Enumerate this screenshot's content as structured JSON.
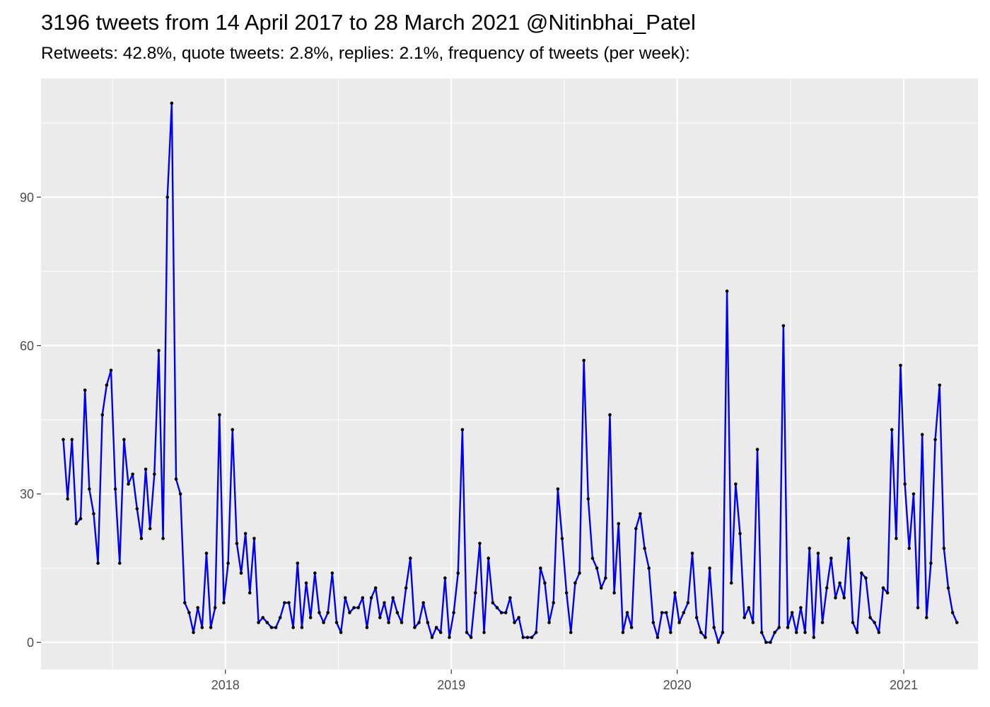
{
  "chart_data": {
    "type": "line",
    "title": "3196 tweets from 14 April 2017 to 28 March 2021 @Nitinbhai_Patel",
    "subtitle": "Retweets: 42.8%, quote tweets: 2.8%, replies: 2.1%, frequency of tweets (per week):",
    "xlabel": "",
    "ylabel": "",
    "x_start": "2017-04-14",
    "x_end": "2021-03-28",
    "xlim": [
      "2017-03-09",
      "2021-05-01"
    ],
    "ylim": [
      -5.5,
      114
    ],
    "y_ticks": [
      0,
      30,
      60,
      90
    ],
    "x_ticks": [
      {
        "label": "2018",
        "date": "2018-01-01"
      },
      {
        "label": "2019",
        "date": "2019-01-01"
      },
      {
        "label": "2020",
        "date": "2020-01-01"
      },
      {
        "label": "2021",
        "date": "2021-01-01"
      }
    ],
    "grid": true,
    "line_color": "#0000ee",
    "point_color": "#000000",
    "panel_background": "#ebebeb",
    "series": [
      {
        "values": [
          41,
          29,
          41,
          24,
          25,
          51,
          31,
          26,
          16,
          46,
          52,
          55,
          31,
          16,
          41,
          32,
          34,
          27,
          21,
          35,
          23,
          34,
          59,
          21,
          90,
          109,
          33,
          30,
          8,
          6,
          2,
          7,
          3,
          18,
          3,
          7,
          46,
          8,
          16,
          43,
          20,
          14,
          22,
          10,
          21,
          4,
          5,
          4,
          3,
          3,
          5,
          8,
          8,
          3,
          16,
          3,
          12,
          5,
          14,
          6,
          4,
          6,
          14,
          4,
          2,
          9,
          6,
          7,
          7,
          9,
          3,
          9,
          11,
          5,
          8,
          4,
          9,
          6,
          4,
          11,
          17,
          3,
          4,
          8,
          4,
          1,
          3,
          2,
          13,
          1,
          6,
          14,
          43,
          2,
          1,
          10,
          20,
          2,
          17,
          8,
          7,
          6,
          6,
          9,
          4,
          5,
          1,
          1,
          1,
          2,
          15,
          12,
          4,
          8,
          31,
          21,
          10,
          2,
          12,
          14,
          57,
          29,
          17,
          15,
          11,
          13,
          46,
          10,
          24,
          2,
          6,
          3,
          23,
          26,
          19,
          15,
          4,
          1,
          6,
          6,
          2,
          10,
          4,
          6,
          8,
          18,
          5,
          2,
          1,
          15,
          3,
          0,
          2,
          71,
          12,
          32,
          22,
          5,
          7,
          4,
          39,
          2,
          0,
          0,
          2,
          3,
          64,
          3,
          6,
          2,
          7,
          2,
          19,
          1,
          18,
          4,
          11,
          17,
          9,
          12,
          9,
          21,
          4,
          2,
          14,
          13,
          5,
          4,
          2,
          11,
          10,
          43,
          21,
          56,
          32,
          19,
          30,
          7,
          42,
          5,
          16,
          41,
          52,
          19,
          11,
          6,
          4
        ]
      }
    ]
  }
}
